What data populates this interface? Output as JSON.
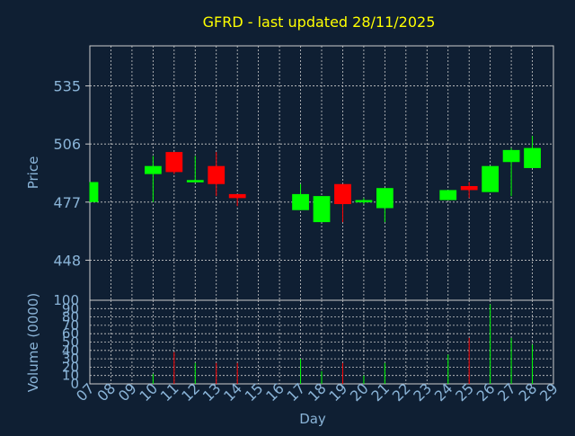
{
  "chart_data": {
    "type": "candlestick",
    "title": "GFRD - last updated 28/11/2025",
    "price_panel": {
      "ylabel": "Price",
      "yticks": [
        448,
        477,
        506,
        535
      ],
      "ylim": [
        428,
        555
      ]
    },
    "volume_panel": {
      "ylabel": "Volume (0000)",
      "yticks": [
        0,
        10,
        20,
        30,
        40,
        50,
        60,
        70,
        80,
        90,
        100
      ],
      "ylim": [
        0,
        100
      ]
    },
    "xlabel": "Day",
    "x_ticks": [
      "07",
      "08",
      "09",
      "10",
      "11",
      "12",
      "13",
      "14",
      "15",
      "16",
      "17",
      "18",
      "19",
      "20",
      "21",
      "22",
      "23",
      "24",
      "25",
      "26",
      "27",
      "28",
      "29"
    ],
    "colors": {
      "up": "#00ff00",
      "down": "#ff0000",
      "title": "#ffff00",
      "axis_text": "#8ab4d8",
      "grid": "#cccccc",
      "background": "#0f1f33"
    },
    "candles": [
      {
        "day": 7,
        "open": 477,
        "high": 487,
        "low": 477,
        "close": 487,
        "volume": 0
      },
      {
        "day": 10,
        "open": 491,
        "high": 500,
        "low": 477,
        "close": 495,
        "volume": 12
      },
      {
        "day": 11,
        "open": 502,
        "high": 502,
        "low": 491,
        "close": 492,
        "volume": 38
      },
      {
        "day": 12,
        "open": 487,
        "high": 500,
        "low": 487,
        "close": 488,
        "volume": 25
      },
      {
        "day": 13,
        "open": 495,
        "high": 502,
        "low": 480,
        "close": 486,
        "volume": 25
      },
      {
        "day": 14,
        "open": 481,
        "high": 481,
        "low": 475,
        "close": 479,
        "volume": 25
      },
      {
        "day": 17,
        "open": 473,
        "high": 486,
        "low": 473,
        "close": 481,
        "volume": 30
      },
      {
        "day": 18,
        "open": 467,
        "high": 480,
        "low": 467,
        "close": 480,
        "volume": 15
      },
      {
        "day": 19,
        "open": 486,
        "high": 486,
        "low": 467,
        "close": 476,
        "volume": 25
      },
      {
        "day": 20,
        "open": 477,
        "high": 479,
        "low": 476,
        "close": 478,
        "volume": 10
      },
      {
        "day": 21,
        "open": 474,
        "high": 484,
        "low": 467,
        "close": 484,
        "volume": 25
      },
      {
        "day": 24,
        "open": 478,
        "high": 483,
        "low": 478,
        "close": 483,
        "volume": 35
      },
      {
        "day": 25,
        "open": 485,
        "high": 487,
        "low": 479,
        "close": 483,
        "volume": 55
      },
      {
        "day": 26,
        "open": 482,
        "high": 495,
        "low": 482,
        "close": 495,
        "volume": 95
      },
      {
        "day": 27,
        "open": 497,
        "high": 504,
        "low": 480,
        "close": 503,
        "volume": 55
      },
      {
        "day": 28,
        "open": 494,
        "high": 510,
        "low": 494,
        "close": 504,
        "volume": 47
      }
    ]
  }
}
